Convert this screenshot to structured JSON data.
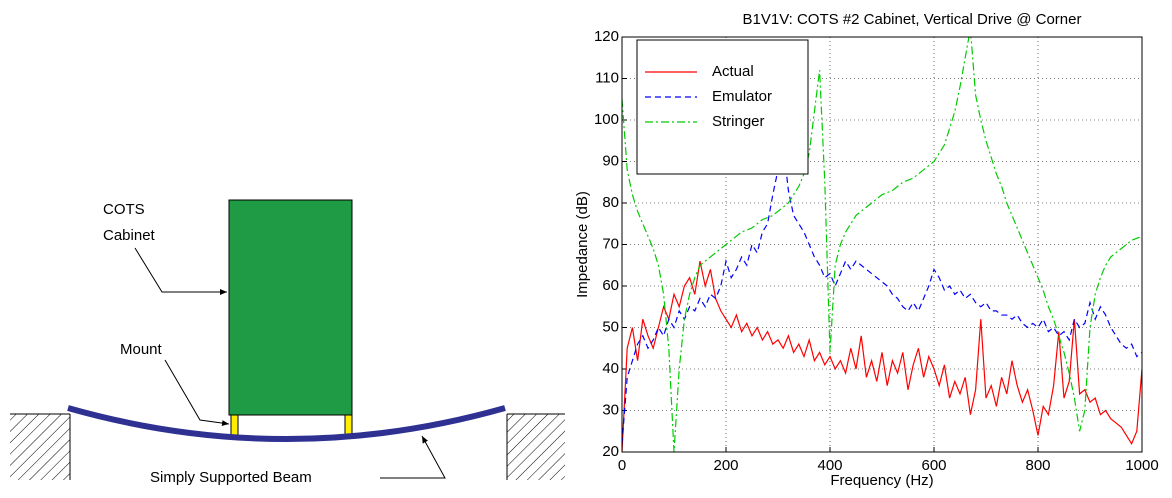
{
  "diagram": {
    "cabinet_label": [
      "COTS",
      "Cabinet"
    ],
    "mount_label": "Mount",
    "beam_label": "Simply Supported Beam"
  },
  "chart_data": {
    "type": "line",
    "title": "B1V1V: COTS #2 Cabinet, Vertical Drive @ Corner",
    "x_label": "Frequency (Hz)",
    "y_label": "Impedance (dB)",
    "xlim": [
      0,
      1000
    ],
    "xticks": [
      0,
      200,
      400,
      600,
      800,
      1000
    ],
    "ylim": [
      20,
      120
    ],
    "yticks": [
      20,
      30,
      40,
      50,
      60,
      70,
      80,
      90,
      100,
      110,
      120
    ],
    "grid": true,
    "legend": "upper left",
    "x": [
      0,
      10,
      20,
      30,
      40,
      50,
      60,
      70,
      80,
      90,
      100,
      110,
      120,
      130,
      140,
      150,
      160,
      170,
      180,
      190,
      200,
      210,
      220,
      230,
      240,
      250,
      260,
      270,
      280,
      290,
      300,
      310,
      320,
      330,
      340,
      350,
      360,
      370,
      380,
      390,
      400,
      410,
      420,
      430,
      440,
      450,
      460,
      470,
      480,
      490,
      500,
      510,
      520,
      530,
      540,
      550,
      560,
      570,
      580,
      590,
      600,
      610,
      620,
      630,
      640,
      650,
      660,
      670,
      680,
      690,
      700,
      710,
      720,
      730,
      740,
      750,
      760,
      770,
      780,
      790,
      800,
      810,
      820,
      830,
      840,
      850,
      860,
      870,
      880,
      890,
      900,
      910,
      920,
      930,
      940,
      950,
      960,
      970,
      980,
      990,
      1000
    ],
    "series": [
      {
        "name": "Actual",
        "color": "#ff0000",
        "dash": "solid",
        "values": [
          20,
          45,
          50,
          42,
          52,
          48,
          45,
          50,
          55,
          52,
          58,
          55,
          60,
          62,
          58,
          66,
          60,
          64,
          57,
          54,
          52,
          50,
          53,
          49,
          51,
          48,
          50,
          47,
          49,
          46,
          47,
          45,
          48,
          44,
          46,
          43,
          47,
          42,
          44,
          41,
          43,
          40,
          42,
          39,
          45,
          40,
          48,
          38,
          42,
          37,
          44,
          36,
          42,
          39,
          44,
          35,
          41,
          45,
          38,
          43,
          40,
          36,
          41,
          33,
          37,
          34,
          38,
          29,
          35,
          52,
          33,
          36,
          31,
          38,
          34,
          42,
          36,
          32,
          35,
          30,
          24,
          31,
          29,
          36,
          49,
          33,
          37,
          52,
          34,
          35,
          32,
          33,
          29,
          30,
          28,
          27,
          26,
          24,
          22,
          25,
          40
        ]
      },
      {
        "name": "Emulator",
        "color": "#0000ff",
        "dash": "dashed",
        "values": [
          22,
          38,
          42,
          46,
          48,
          45,
          47,
          50,
          48,
          52,
          50,
          54,
          52,
          55,
          54,
          57,
          55,
          58,
          57,
          60,
          66,
          62,
          64,
          67,
          65,
          70,
          68,
          73,
          75,
          82,
          88,
          94,
          83,
          77,
          75,
          73,
          70,
          67,
          65,
          62,
          63,
          60,
          63,
          66,
          64,
          66,
          65,
          64,
          63,
          62,
          61,
          60,
          58,
          57,
          55,
          54,
          56,
          54,
          57,
          60,
          64,
          62,
          59,
          60,
          58,
          59,
          57,
          58,
          56,
          55,
          56,
          54,
          54,
          53,
          53,
          52,
          53,
          51,
          50,
          51,
          50,
          52,
          49,
          50,
          48,
          49,
          47,
          52,
          50,
          51,
          56,
          52,
          55,
          53,
          50,
          48,
          46,
          45,
          46,
          43,
          44
        ]
      },
      {
        "name": "Stringer",
        "color": "#00cc00",
        "dash": "dashdot",
        "values": [
          105,
          88,
          82,
          78,
          75,
          72,
          69,
          65,
          58,
          45,
          20,
          40,
          52,
          58,
          62,
          65,
          66,
          67,
          68,
          69,
          70,
          71,
          72,
          73,
          73.5,
          74,
          75,
          76,
          76.5,
          77,
          78,
          79,
          80,
          82,
          84,
          87,
          92,
          102,
          112,
          85,
          44,
          65,
          70,
          73,
          75,
          77,
          78,
          79,
          80,
          81,
          82,
          82.5,
          83,
          84,
          85,
          85.5,
          86,
          87,
          88,
          89,
          90,
          92,
          94,
          98,
          102,
          108,
          115,
          122,
          106,
          100,
          95,
          91,
          87,
          84,
          80,
          77,
          74,
          71,
          68,
          65,
          62,
          59,
          55,
          52,
          48,
          44,
          39,
          33,
          25,
          30,
          50,
          58,
          62,
          65,
          67,
          68,
          69,
          70,
          71,
          71.5,
          72
        ]
      }
    ]
  }
}
